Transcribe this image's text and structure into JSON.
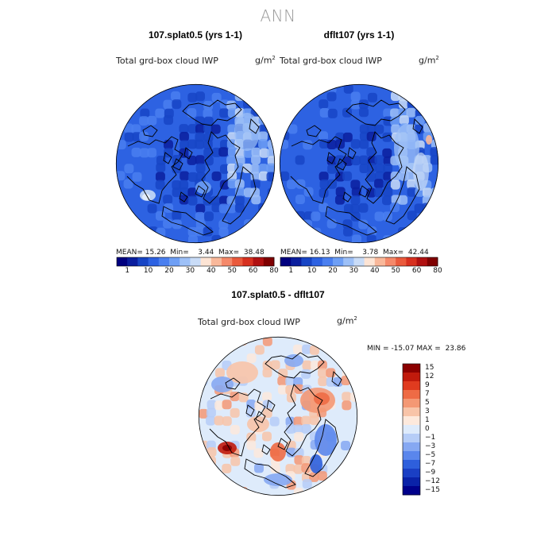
{
  "page_title": "ANN",
  "chart_data": [
    {
      "type": "heatmap",
      "projection": "north-polar-stereographic",
      "title": "107.splat0.5 (yrs 1-1)",
      "variable": "Total grd-box cloud IWP",
      "units": "g/m",
      "units_exp": "2",
      "stats": {
        "mean_label": "MEAN=",
        "mean": "15.26",
        "min_label": "Min=",
        "min": "3.44",
        "max_label": "Max=",
        "max": "38.48"
      },
      "colorbar": {
        "colors": [
          "#00007f",
          "#0a1e9e",
          "#1745c5",
          "#2d62e2",
          "#4a7ff0",
          "#6e9ff5",
          "#9dc0f7",
          "#c9dcf7",
          "#fde4d4",
          "#f9b89a",
          "#f5896a",
          "#ea5a3c",
          "#d7301f",
          "#b01010",
          "#7f0000"
        ],
        "labels": [
          "1",
          "10",
          "20",
          "30",
          "40",
          "50",
          "60",
          "80"
        ]
      }
    },
    {
      "type": "heatmap",
      "projection": "north-polar-stereographic",
      "title": "dflt107 (yrs 1-1)",
      "variable": "Total grd-box cloud IWP",
      "units": "g/m",
      "units_exp": "2",
      "stats": {
        "mean_label": "MEAN=",
        "mean": "16.13",
        "min_label": "Min=",
        "min": "3.78",
        "max_label": "Max=",
        "max": "42.44"
      },
      "colorbar": {
        "colors": [
          "#00007f",
          "#0a1e9e",
          "#1745c5",
          "#2d62e2",
          "#4a7ff0",
          "#6e9ff5",
          "#9dc0f7",
          "#c9dcf7",
          "#fde4d4",
          "#f9b89a",
          "#f5896a",
          "#ea5a3c",
          "#d7301f",
          "#b01010",
          "#7f0000"
        ],
        "labels": [
          "1",
          "10",
          "20",
          "30",
          "40",
          "50",
          "60",
          "80"
        ]
      }
    },
    {
      "type": "heatmap",
      "projection": "north-polar-stereographic",
      "title": "107.splat0.5 - dflt107",
      "variable": "Total grd-box cloud IWP",
      "units": "g/m",
      "units_exp": "2",
      "stats": {
        "min_label": "MIN =",
        "min": "-15.07",
        "max_label": "MAX =",
        "max": "23.86"
      },
      "colorbar": {
        "orientation": "vertical",
        "colors": [
          "#00008b",
          "#0a22a8",
          "#1a3fc4",
          "#2e5fdc",
          "#5a86ec",
          "#86a8f2",
          "#b6cdf7",
          "#deebfb",
          "#fde9dc",
          "#f8c4a8",
          "#f49874",
          "#ee6b45",
          "#e03b1f",
          "#c01a0c",
          "#8b0000"
        ],
        "labels": [
          "15",
          "12",
          "9",
          "7",
          "5",
          "3",
          "1",
          "0",
          "−1",
          "−3",
          "−5",
          "−7",
          "−9",
          "−12",
          "−15"
        ]
      }
    }
  ]
}
